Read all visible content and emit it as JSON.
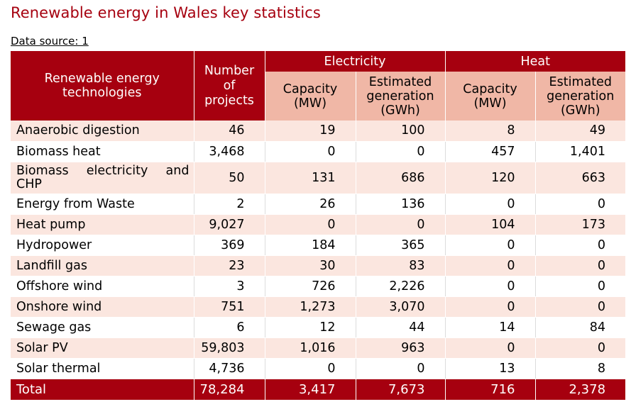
{
  "title": "Renewable energy in Wales key statistics",
  "source": "Data source: 1",
  "header": {
    "technologies": "Renewable energy technologies",
    "projects": "Number of projects",
    "electricity": "Electricity",
    "heat": "Heat",
    "elec_capacity": "Capacity (MW)",
    "elec_generation": "Estimated generation (GWh)",
    "heat_capacity": "Capacity (MW)",
    "heat_generation": "Estimated generation (GWh)"
  },
  "rows": [
    {
      "name": "Anaerobic digestion",
      "projects": "46",
      "elec_capacity": "19",
      "elec_generation": "100",
      "heat_capacity": "8",
      "heat_generation": "49"
    },
    {
      "name": "Biomass heat",
      "projects": "3,468",
      "elec_capacity": "0",
      "elec_generation": "0",
      "heat_capacity": "457",
      "heat_generation": "1,401"
    },
    {
      "name": "Biomass electricity and CHP",
      "projects": "50",
      "elec_capacity": "131",
      "elec_generation": "686",
      "heat_capacity": "120",
      "heat_generation": "663"
    },
    {
      "name": "Energy from Waste",
      "projects": "2",
      "elec_capacity": "26",
      "elec_generation": "136",
      "heat_capacity": "0",
      "heat_generation": "0"
    },
    {
      "name": "Heat pump",
      "projects": "9,027",
      "elec_capacity": "0",
      "elec_generation": "0",
      "heat_capacity": "104",
      "heat_generation": "173"
    },
    {
      "name": "Hydropower",
      "projects": "369",
      "elec_capacity": "184",
      "elec_generation": "365",
      "heat_capacity": "0",
      "heat_generation": "0"
    },
    {
      "name": "Landfill gas",
      "projects": "23",
      "elec_capacity": "30",
      "elec_generation": "83",
      "heat_capacity": "0",
      "heat_generation": "0"
    },
    {
      "name": "Offshore wind",
      "projects": "3",
      "elec_capacity": "726",
      "elec_generation": "2,226",
      "heat_capacity": "0",
      "heat_generation": "0"
    },
    {
      "name": "Onshore wind",
      "projects": "751",
      "elec_capacity": "1,273",
      "elec_generation": "3,070",
      "heat_capacity": "0",
      "heat_generation": "0"
    },
    {
      "name": "Sewage gas",
      "projects": "6",
      "elec_capacity": "12",
      "elec_generation": "44",
      "heat_capacity": "14",
      "heat_generation": "84"
    },
    {
      "name": "Solar PV",
      "projects": "59,803",
      "elec_capacity": "1,016",
      "elec_generation": "963",
      "heat_capacity": "0",
      "heat_generation": "0"
    },
    {
      "name": "Solar thermal",
      "projects": "4,736",
      "elec_capacity": "0",
      "elec_generation": "0",
      "heat_capacity": "13",
      "heat_generation": "8"
    }
  ],
  "total": {
    "name": "Total",
    "projects": "78,284",
    "elec_capacity": "3,417",
    "elec_generation": "7,673",
    "heat_capacity": "716",
    "heat_generation": "2,378"
  },
  "colors": {
    "dark_red": "#a6000f",
    "header_pink": "#f0b7a6",
    "row_shade": "#fbe6df"
  }
}
